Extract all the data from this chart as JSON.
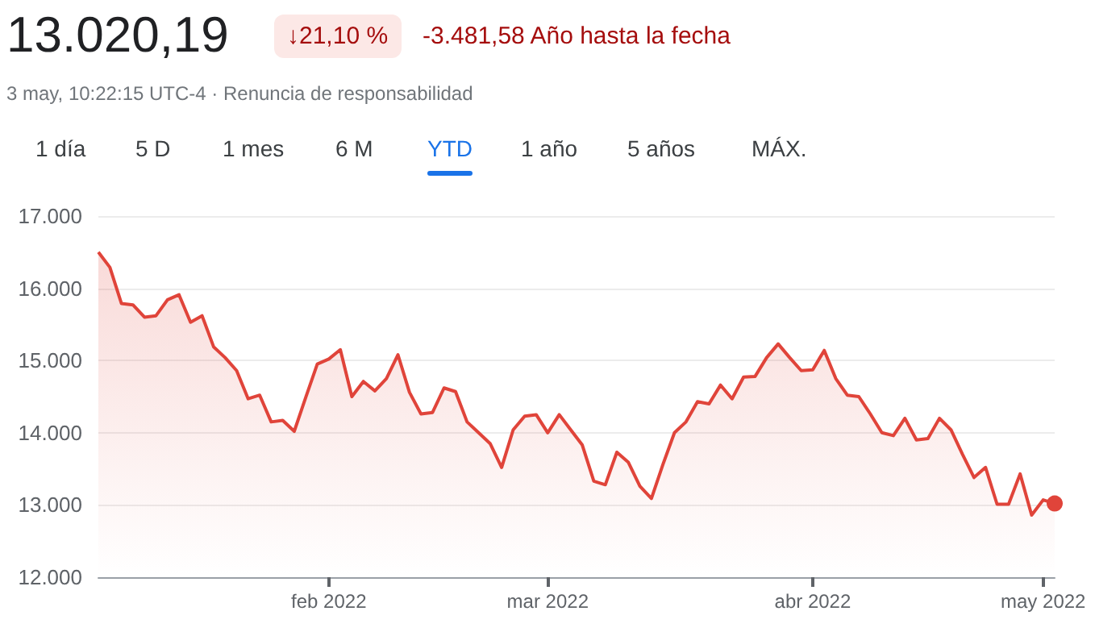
{
  "chart_data": {
    "type": "area",
    "title": "13.020,19",
    "subtitle": "3 may, 10:22:15 UTC-4 · Renuncia de responsabilidad",
    "annotations": [
      "↓21,10 %",
      "-3.481,58 Año hasta la fecha",
      "1 día",
      "5 D",
      "1 mes",
      "6 M",
      "YTD",
      "1 año",
      "5 años",
      "MÁX."
    ],
    "categories": [
      null,
      null,
      null,
      null,
      null,
      null,
      null,
      null,
      null,
      null,
      null,
      null,
      null,
      null,
      null,
      null,
      null,
      null,
      null,
      null,
      "feb 2022",
      null,
      null,
      null,
      null,
      null,
      null,
      null,
      null,
      null,
      null,
      null,
      null,
      null,
      null,
      null,
      null,
      null,
      null,
      "mar 2022",
      null,
      null,
      null,
      null,
      null,
      null,
      null,
      null,
      null,
      null,
      null,
      null,
      null,
      null,
      null,
      null,
      null,
      null,
      null,
      null,
      null,
      null,
      "abr 2022",
      null,
      null,
      null,
      null,
      null,
      null,
      null,
      null,
      null,
      null,
      null,
      null,
      null,
      null,
      null,
      null,
      null,
      null,
      null,
      "may 2022",
      null
    ],
    "series": [
      {
        "color": "#e0443a",
        "values": [
          16500,
          16290,
          15790,
          15770,
          15600,
          15620,
          15840,
          15910,
          15530,
          15620,
          15190,
          15040,
          14860,
          14470,
          14520,
          14150,
          14170,
          14020,
          14490,
          14950,
          15020,
          15150,
          14500,
          14710,
          14580,
          14750,
          15080,
          14560,
          14260,
          14280,
          14620,
          14570,
          14150,
          14000,
          13850,
          13520,
          14040,
          14230,
          14250,
          14000,
          14250,
          14040,
          13830,
          13330,
          13280,
          13730,
          13590,
          13260,
          13090,
          13560,
          14000,
          14150,
          14430,
          14400,
          14660,
          14470,
          14770,
          14780,
          15040,
          15230,
          15040,
          14860,
          14870,
          15140,
          14750,
          14520,
          14500,
          14260,
          14000,
          13960,
          14200,
          13900,
          13920,
          14200,
          14040,
          13700,
          13380,
          13520,
          13010,
          13010,
          13430,
          12860,
          13070,
          13020
        ]
      }
    ],
    "ylim": [
      12000,
      17000
    ],
    "yticks": [
      {
        "value": 12000,
        "label": "12.000"
      },
      {
        "value": 13000,
        "label": "13.000"
      },
      {
        "value": 14000,
        "label": "14.000"
      },
      {
        "value": 15000,
        "label": "15.000"
      },
      {
        "value": 16000,
        "label": "16.000"
      },
      {
        "value": 17000,
        "label": "17.000"
      }
    ],
    "grid": "y"
  }
}
